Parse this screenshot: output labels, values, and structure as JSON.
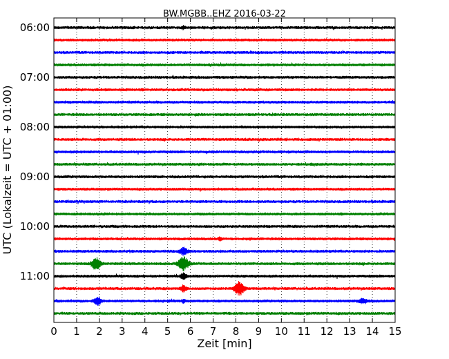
{
  "chart_data": {
    "type": "line",
    "title": "BW.MGBB..EHZ 2016-03-22",
    "xlabel": "Zeit  [min]",
    "ylabel": "UTC (Lokalzeit = UTC + 01:00)",
    "xlim": [
      0,
      15
    ],
    "x_ticks": [
      "0",
      "1",
      "2",
      "3",
      "4",
      "5",
      "6",
      "7",
      "8",
      "9",
      "10",
      "11",
      "12",
      "13",
      "14",
      "15"
    ],
    "y_ticks": [
      {
        "label": "06:00",
        "trace": 0
      },
      {
        "label": "07:00",
        "trace": 4
      },
      {
        "label": "08:00",
        "trace": 8
      },
      {
        "label": "09:00",
        "trace": 12
      },
      {
        "label": "10:00",
        "trace": 16
      },
      {
        "label": "11:00",
        "trace": 20
      }
    ],
    "trace_count": 24,
    "trace_minutes": 15,
    "colors": [
      "#000000",
      "#ff0000",
      "#0000ff",
      "#008000"
    ],
    "grid": "vertical-dotted",
    "events": [
      {
        "trace": 0,
        "t": 5.7,
        "amp": 2.2,
        "width": 0.07
      },
      {
        "trace": 20,
        "t": 5.7,
        "amp": 4.2,
        "width": 0.12
      },
      {
        "trace": 21,
        "t": 5.7,
        "amp": 4.5,
        "width": 0.12
      },
      {
        "trace": 22,
        "t": 5.7,
        "amp": 1.8,
        "width": 0.08
      },
      {
        "trace": 18,
        "t": 5.7,
        "amp": 5.2,
        "width": 0.16
      },
      {
        "trace": 19,
        "t": 5.7,
        "amp": 9.0,
        "width": 0.22
      },
      {
        "trace": 19,
        "t": 1.85,
        "amp": 8.5,
        "width": 0.18
      },
      {
        "trace": 21,
        "t": 8.15,
        "amp": 9.5,
        "width": 0.2
      },
      {
        "trace": 22,
        "t": 1.92,
        "amp": 5.5,
        "width": 0.15
      },
      {
        "trace": 22,
        "t": 13.6,
        "amp": 3.2,
        "width": 0.18
      },
      {
        "trace": 17,
        "t": 7.3,
        "amp": 2.2,
        "width": 0.08
      }
    ]
  }
}
